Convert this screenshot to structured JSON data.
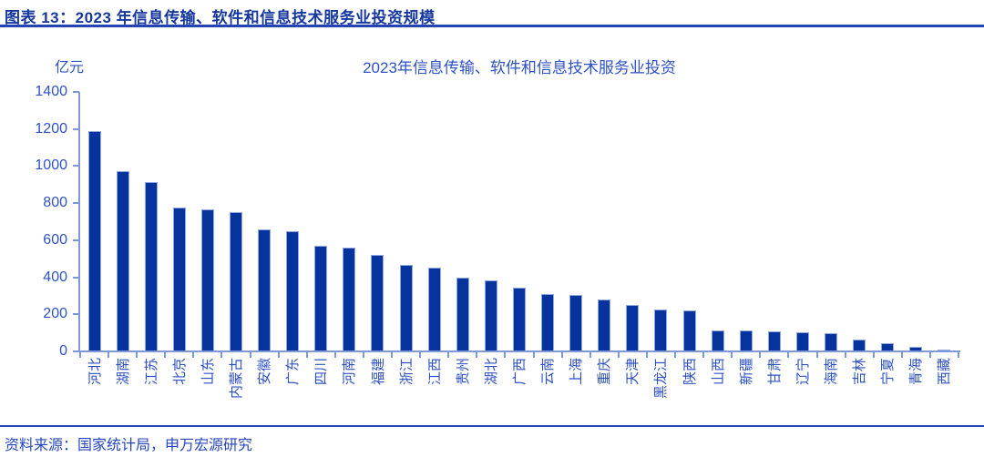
{
  "header": {
    "title": "图表 13：2023 年信息传输、软件和信息技术服务业投资规模"
  },
  "footer": {
    "source": "资料来源：国家统计局，申万宏源研究"
  },
  "chart_data": {
    "type": "bar",
    "title": "2023年信息传输、软件和信息技术服务业投资",
    "unit_label": "亿元",
    "xlabel": "",
    "ylabel": "亿元",
    "ylim": [
      0,
      1400
    ],
    "ytick_step": 200,
    "grid": false,
    "legend": "none",
    "categories": [
      "河北",
      "湖南",
      "江苏",
      "北京",
      "山东",
      "内蒙古",
      "安徽",
      "广东",
      "四川",
      "河南",
      "福建",
      "浙江",
      "江西",
      "贵州",
      "湖北",
      "广西",
      "云南",
      "上海",
      "重庆",
      "天津",
      "黑龙江",
      "陕西",
      "山西",
      "新疆",
      "甘肃",
      "辽宁",
      "海南",
      "吉林",
      "宁夏",
      "青海",
      "西藏"
    ],
    "values": [
      1190,
      975,
      915,
      775,
      765,
      750,
      660,
      650,
      570,
      560,
      520,
      465,
      450,
      400,
      385,
      345,
      310,
      305,
      280,
      250,
      225,
      220,
      115,
      112,
      110,
      105,
      100,
      65,
      45,
      25,
      3
    ],
    "colors": {
      "bar_fill": "#07339e",
      "bar_border": "#8fa7dc",
      "axis": "#7e98d8",
      "tick_label": "#2e51c5",
      "header_title": "#16389e",
      "rule": "#2443b4"
    }
  }
}
